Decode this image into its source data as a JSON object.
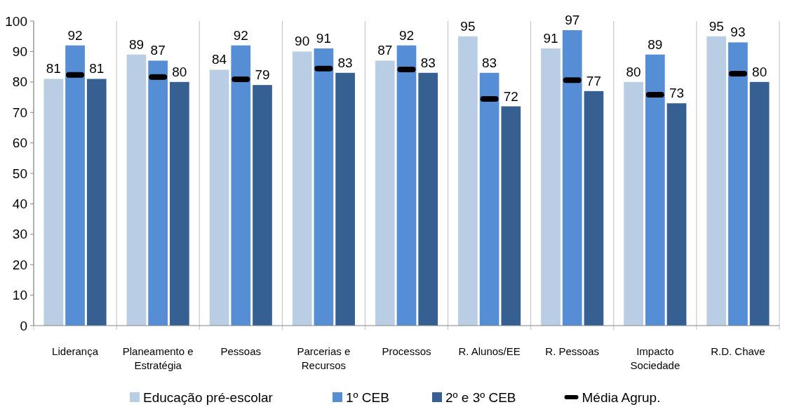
{
  "chart_data": {
    "type": "bar",
    "categories": [
      "Liderança",
      "Planeamento e Estratégia",
      "Pessoas",
      "Parcerias e Recursos",
      "Processos",
      "R. Alunos/EE",
      "R. Pessoas",
      "Impacto Sociedade",
      "R.D. Chave"
    ],
    "series": [
      {
        "name": "Educação pré-escolar",
        "color": "#b9cde5",
        "values": [
          81,
          89,
          84,
          90,
          87,
          95,
          91,
          80,
          95
        ],
        "value_labels": [
          "81",
          "89",
          "84",
          "90",
          "87",
          "95",
          "91",
          "80",
          "95"
        ]
      },
      {
        "name": "1º CEB",
        "color": "#558ed5",
        "values": [
          92,
          87,
          92,
          91,
          92,
          83,
          97,
          89,
          93
        ],
        "value_labels": [
          "92",
          "87",
          "92",
          "91",
          "92",
          "83",
          "97",
          "89",
          "93"
        ]
      },
      {
        "name": "2º e 3º CEB",
        "color": "#376092",
        "values": [
          81,
          80,
          79,
          83,
          83,
          72,
          77,
          73,
          80
        ],
        "value_labels": [
          "81",
          "80",
          "79",
          "83",
          "83",
          "72",
          "77",
          "73",
          "80"
        ]
      },
      {
        "name": "Média Agrup.",
        "type": "scatter",
        "color": "#000000",
        "x": [
          "Liderança",
          "Planeamento e Estratégia",
          "Pessoas",
          "Parcerias e Recursos",
          "Processos",
          "R. Alunos/EE",
          "R. Pessoas",
          "Impacto Sociedade",
          "R.D. Chave"
        ],
        "values": [
          82.3,
          81.6,
          80.9,
          84.4,
          84.1,
          74.4,
          80.6,
          75.8,
          82.7
        ]
      }
    ],
    "ylim": [
      0,
      100
    ],
    "yticks": [
      0,
      10,
      20,
      30,
      40,
      50,
      60,
      70,
      80,
      90,
      100
    ],
    "grid": "x",
    "legend": "bottom"
  }
}
